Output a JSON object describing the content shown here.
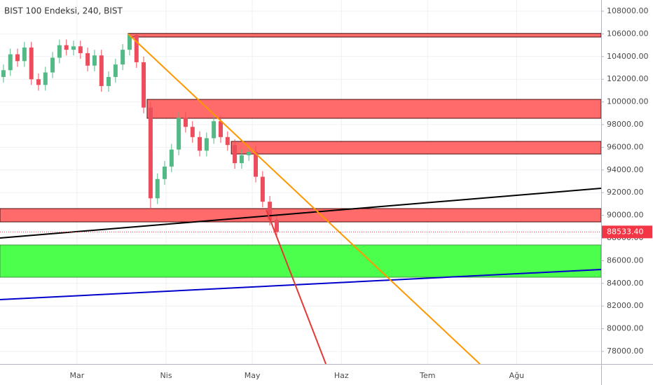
{
  "chart_data": {
    "type": "candlestick",
    "title": "BIST 100 Endeksi, 240, BIST",
    "x": [
      -25.6,
      -23.2,
      -20.7,
      -18.3,
      -15.9,
      -13.4,
      -11.0,
      -8.5,
      -6.1,
      -3.7,
      -1.2,
      1.2,
      3.7,
      6.1,
      8.5,
      11.0,
      13.4,
      15.9,
      18.3,
      20.7,
      23.2,
      25.6,
      28.0,
      30.5,
      32.9,
      35.4,
      37.8,
      40.2,
      42.7,
      45.1,
      47.6,
      50.0,
      52.4,
      54.9,
      57.3,
      59.8,
      62.2,
      64.6,
      67.1,
      69.5
    ],
    "open": [
      102200,
      102800,
      104200,
      103600,
      104800,
      102000,
      101500,
      102600,
      103900,
      105000,
      104600,
      104900,
      104300,
      103200,
      104100,
      101400,
      102200,
      103300,
      104600,
      105900,
      103500,
      99500,
      91500,
      93200,
      94300,
      95800,
      98600,
      97800,
      96900,
      95700,
      96800,
      98300,
      96900,
      96200,
      94600,
      95300,
      95600,
      93400,
      91200,
      89600
    ],
    "close": [
      102800,
      104200,
      103600,
      104800,
      102000,
      101500,
      102600,
      103900,
      105000,
      104600,
      104900,
      104300,
      103200,
      104100,
      101400,
      102200,
      103300,
      104600,
      105900,
      103500,
      99500,
      91500,
      93200,
      94300,
      95800,
      98600,
      97800,
      96900,
      95700,
      96800,
      98300,
      96900,
      96200,
      94600,
      95300,
      95600,
      93400,
      91200,
      89600,
      88533.4
    ],
    "high": [
      103300,
      104700,
      104700,
      105300,
      105300,
      102500,
      103100,
      104400,
      105500,
      105500,
      105400,
      105400,
      104800,
      104600,
      104600,
      102700,
      103800,
      105100,
      106000,
      106000,
      104000,
      100000,
      93700,
      94800,
      96300,
      99100,
      99100,
      98300,
      97400,
      97300,
      98800,
      98800,
      97400,
      96700,
      95800,
      96100,
      96100,
      93900,
      91700,
      90100
    ],
    "low": [
      101700,
      102300,
      103100,
      103100,
      101500,
      101000,
      101000,
      102100,
      103400,
      104100,
      104100,
      103800,
      102700,
      102700,
      100900,
      100900,
      101700,
      102800,
      104100,
      103000,
      99000,
      90500,
      91000,
      92700,
      93800,
      95300,
      97300,
      96400,
      95200,
      95200,
      96300,
      96400,
      95700,
      94100,
      94100,
      94800,
      92900,
      90700,
      89100,
      88033.4
    ],
    "up_color": "#53b987",
    "down_color": "#eb4d5c",
    "xlim": [
      -26.8,
      182.4
    ],
    "ylim": [
      76889,
      108988
    ],
    "xticks": [
      {
        "value": 0,
        "label": "Mar"
      },
      {
        "value": 31,
        "label": "Nis"
      },
      {
        "value": 61,
        "label": "May"
      },
      {
        "value": 92,
        "label": "Haz"
      },
      {
        "value": 122,
        "label": "Tem"
      },
      {
        "value": 153,
        "label": "Ağu"
      }
    ],
    "yticks": [
      {
        "value": 78000,
        "label": "78000.00"
      },
      {
        "value": 80000,
        "label": "80000.00"
      },
      {
        "value": 82000,
        "label": "82000.00"
      },
      {
        "value": 84000,
        "label": "84000.00"
      },
      {
        "value": 86000,
        "label": "86000.00"
      },
      {
        "value": 88000,
        "label": "88000.00"
      },
      {
        "value": 90000,
        "label": "90000.00"
      },
      {
        "value": 92000,
        "label": "92000.00"
      },
      {
        "value": 94000,
        "label": "94000.00"
      },
      {
        "value": 96000,
        "label": "96000.00"
      },
      {
        "value": 98000,
        "label": "98000.00"
      },
      {
        "value": 100000,
        "label": "100000.00"
      },
      {
        "value": 102000,
        "label": "102000.00"
      },
      {
        "value": 104000,
        "label": "104000.00"
      },
      {
        "value": 106000,
        "label": "106000.00"
      },
      {
        "value": 108000,
        "label": "108000.00"
      }
    ],
    "last_price": {
      "value": 88533.4,
      "label": "88533.40",
      "color": "#f23645"
    },
    "zones": [
      {
        "x0": 17.8,
        "x1": 182.4,
        "y0": 105720,
        "y1": 106040,
        "color": "#ff6b6b"
      },
      {
        "x0": 24.4,
        "x1": 182.4,
        "y0": 98556,
        "y1": 100222,
        "color": "#ff6b6b"
      },
      {
        "x0": 53.7,
        "x1": 182.4,
        "y0": 95407,
        "y1": 96519,
        "color": "#ff6b6b"
      },
      {
        "x0": -26.8,
        "x1": 182.4,
        "y0": 89420,
        "y1": 90593,
        "color": "#ff6b6b"
      },
      {
        "x0": -26.8,
        "x1": 182.4,
        "y0": 84543,
        "y1": 87383,
        "color": "#4cff4c"
      }
    ],
    "lines": [
      {
        "x0": -26.8,
        "y0": 88000,
        "x1": 182.4,
        "y1": 92383,
        "color": "#000000"
      },
      {
        "x0": -26.8,
        "y0": 82568,
        "x1": 182.4,
        "y1": 85222,
        "color": "#0000cc"
      },
      {
        "x0": 17.8,
        "y0": 106000,
        "x1": 140.2,
        "y1": 76889,
        "color": "#ff9800"
      },
      {
        "x0": 65.9,
        "y0": 90469,
        "x1": 86.6,
        "y1": 76889,
        "color": "#e53935"
      }
    ],
    "grid": true
  }
}
